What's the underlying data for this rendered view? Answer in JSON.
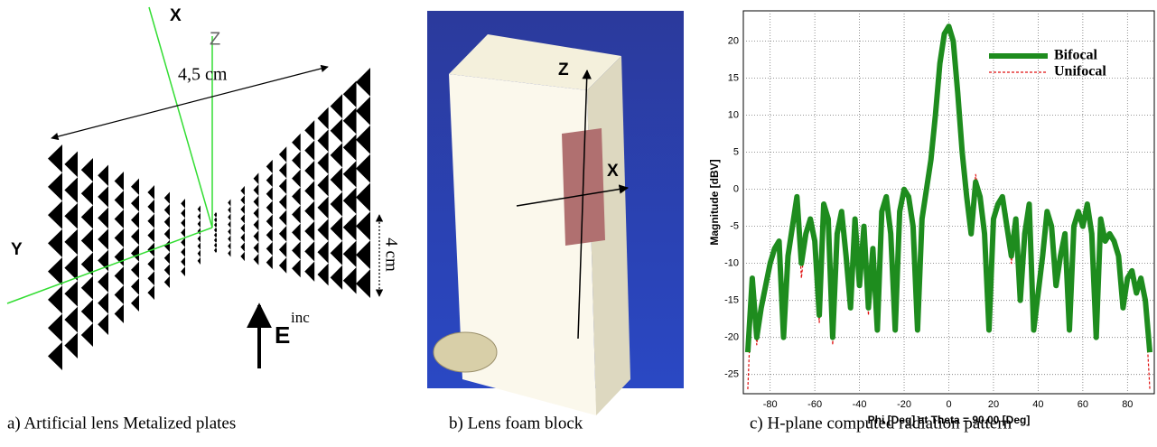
{
  "diagram": {
    "axis_x": "X",
    "axis_z": "Z",
    "axis_y": "Y",
    "width_label": "4,5 cm",
    "height_label": "4 cm",
    "field": "E",
    "field_sup": "inc",
    "caption": "a) Artificial lens Metalized plates"
  },
  "photo": {
    "axis_z": "Z",
    "axis_x": "X",
    "caption": "b) Lens foam block"
  },
  "chart_data": {
    "type": "line",
    "caption": "c) H-plane computed radiation pattern",
    "xlabel": "Phi [Deg] at Theta = 90.00 [Deg]",
    "ylabel": "Magnitude [dBV]",
    "x": [
      -90,
      -88,
      -86,
      -84,
      -82,
      -80,
      -78,
      -76,
      -74,
      -72,
      -70,
      -68,
      -66,
      -64,
      -62,
      -60,
      -58,
      -56,
      -54,
      -52,
      -50,
      -48,
      -46,
      -44,
      -42,
      -40,
      -38,
      -36,
      -34,
      -32,
      -30,
      -28,
      -26,
      -24,
      -22,
      -20,
      -18,
      -16,
      -14,
      -12,
      -10,
      -8,
      -6,
      -4,
      -2,
      0,
      2,
      4,
      6,
      8,
      10,
      12,
      14,
      16,
      18,
      20,
      22,
      24,
      26,
      28,
      30,
      32,
      34,
      36,
      38,
      40,
      42,
      44,
      46,
      48,
      50,
      52,
      54,
      56,
      58,
      60,
      62,
      64,
      66,
      68,
      70,
      72,
      74,
      76,
      78,
      80,
      82,
      84,
      86,
      88,
      90
    ],
    "series": [
      {
        "name": "Bifocal",
        "color": "#1e8c1e",
        "linewidth": 6,
        "linestyle": "solid",
        "values": [
          -22,
          -12,
          -20,
          -16,
          -13,
          -10,
          -8,
          -7,
          -20,
          -9,
          -5,
          -1,
          -10,
          -6,
          -4,
          -7,
          -17,
          -2,
          -4,
          -20,
          -6,
          -3,
          -9,
          -16,
          -4,
          -13,
          -5,
          -16,
          -8,
          -19,
          -3,
          -1,
          -6,
          -19,
          -3,
          0,
          -1,
          -5,
          -19,
          -4,
          0,
          4,
          10,
          17,
          21,
          22,
          20,
          13,
          5,
          -1,
          -6,
          1,
          -1,
          -6,
          -19,
          -4,
          -2,
          -1,
          -5,
          -9,
          -4,
          -15,
          -6,
          -2,
          -19,
          -14,
          -9,
          -3,
          -5,
          -13,
          -9,
          -6,
          -19,
          -5,
          -3,
          -5,
          -2,
          -6,
          -20,
          -4,
          -7,
          -6,
          -7,
          -9,
          -16,
          -12,
          -11,
          -14,
          -12,
          -15,
          -22
        ]
      },
      {
        "name": "Unifocal",
        "color": "#e01010",
        "linewidth": 1.2,
        "linestyle": "dashed",
        "values": [
          -27,
          -12,
          -21,
          -15,
          -14,
          -10,
          -8,
          -7,
          -19,
          -10,
          -5,
          -1,
          -12,
          -6,
          -4,
          -6,
          -18,
          -2,
          -4,
          -21,
          -6,
          -3,
          -10,
          -15,
          -4,
          -13,
          -5,
          -17,
          -8,
          -19,
          -3,
          -1,
          -6,
          -19,
          -3,
          0,
          -1,
          -5,
          -19,
          -4,
          0,
          4,
          10,
          17,
          21,
          22,
          20,
          13,
          5,
          1,
          -6,
          2,
          -1,
          -6,
          -18,
          -4,
          -2,
          -1,
          -3,
          -10,
          -4,
          -13,
          -6,
          -2,
          -19,
          -14,
          -9,
          -3,
          -5,
          -12,
          -9,
          -6,
          -18,
          -5,
          -3,
          -5,
          -2,
          -6,
          -20,
          -4,
          -7,
          -6,
          -7,
          -10,
          -16,
          -12,
          -11,
          -13,
          -12,
          -16,
          -27
        ]
      }
    ],
    "xlim": [
      -92,
      92
    ],
    "ylim": [
      -27.6,
      24.1
    ],
    "xticks": [
      -80,
      -60,
      -40,
      -20,
      0,
      20,
      40,
      60,
      80
    ],
    "yticks": [
      -25,
      -20,
      -15,
      -10,
      -5,
      0,
      5,
      10,
      15,
      20
    ],
    "grid": true,
    "legend": "upper right"
  }
}
